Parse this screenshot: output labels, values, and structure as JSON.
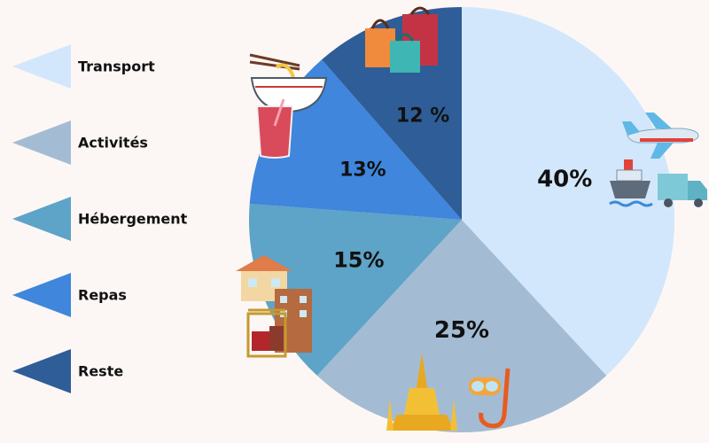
{
  "chart_data": {
    "type": "pie",
    "title": "",
    "slices": [
      {
        "label": "Transport",
        "value": 40,
        "display": "40%",
        "color": "#d2e7fb",
        "text_color": "#111111"
      },
      {
        "label": "Activités",
        "value": 25,
        "display": "25%",
        "color": "#a3bcd3",
        "text_color": "#111111"
      },
      {
        "label": "Hébergement",
        "value": 15,
        "display": "15%",
        "color": "#5ea3c8",
        "text_color": "#111111"
      },
      {
        "label": "Repas",
        "value": 13,
        "display": "13%",
        "color": "#3f86dc",
        "text_color": "#111111"
      },
      {
        "label": "Reste",
        "value": 12,
        "display": "12 %",
        "color": "#2e5d98",
        "text_color": "#ffffff"
      }
    ],
    "legend_position": "left",
    "icons": [
      "airplane-icon",
      "ship-icon",
      "truck-icon",
      "temple-icon",
      "snorkel-mask-icon",
      "hotel-icon",
      "luggage-cart-icon",
      "noodle-bowl-icon",
      "smoothie-icon",
      "shopping-bags-icon"
    ]
  }
}
